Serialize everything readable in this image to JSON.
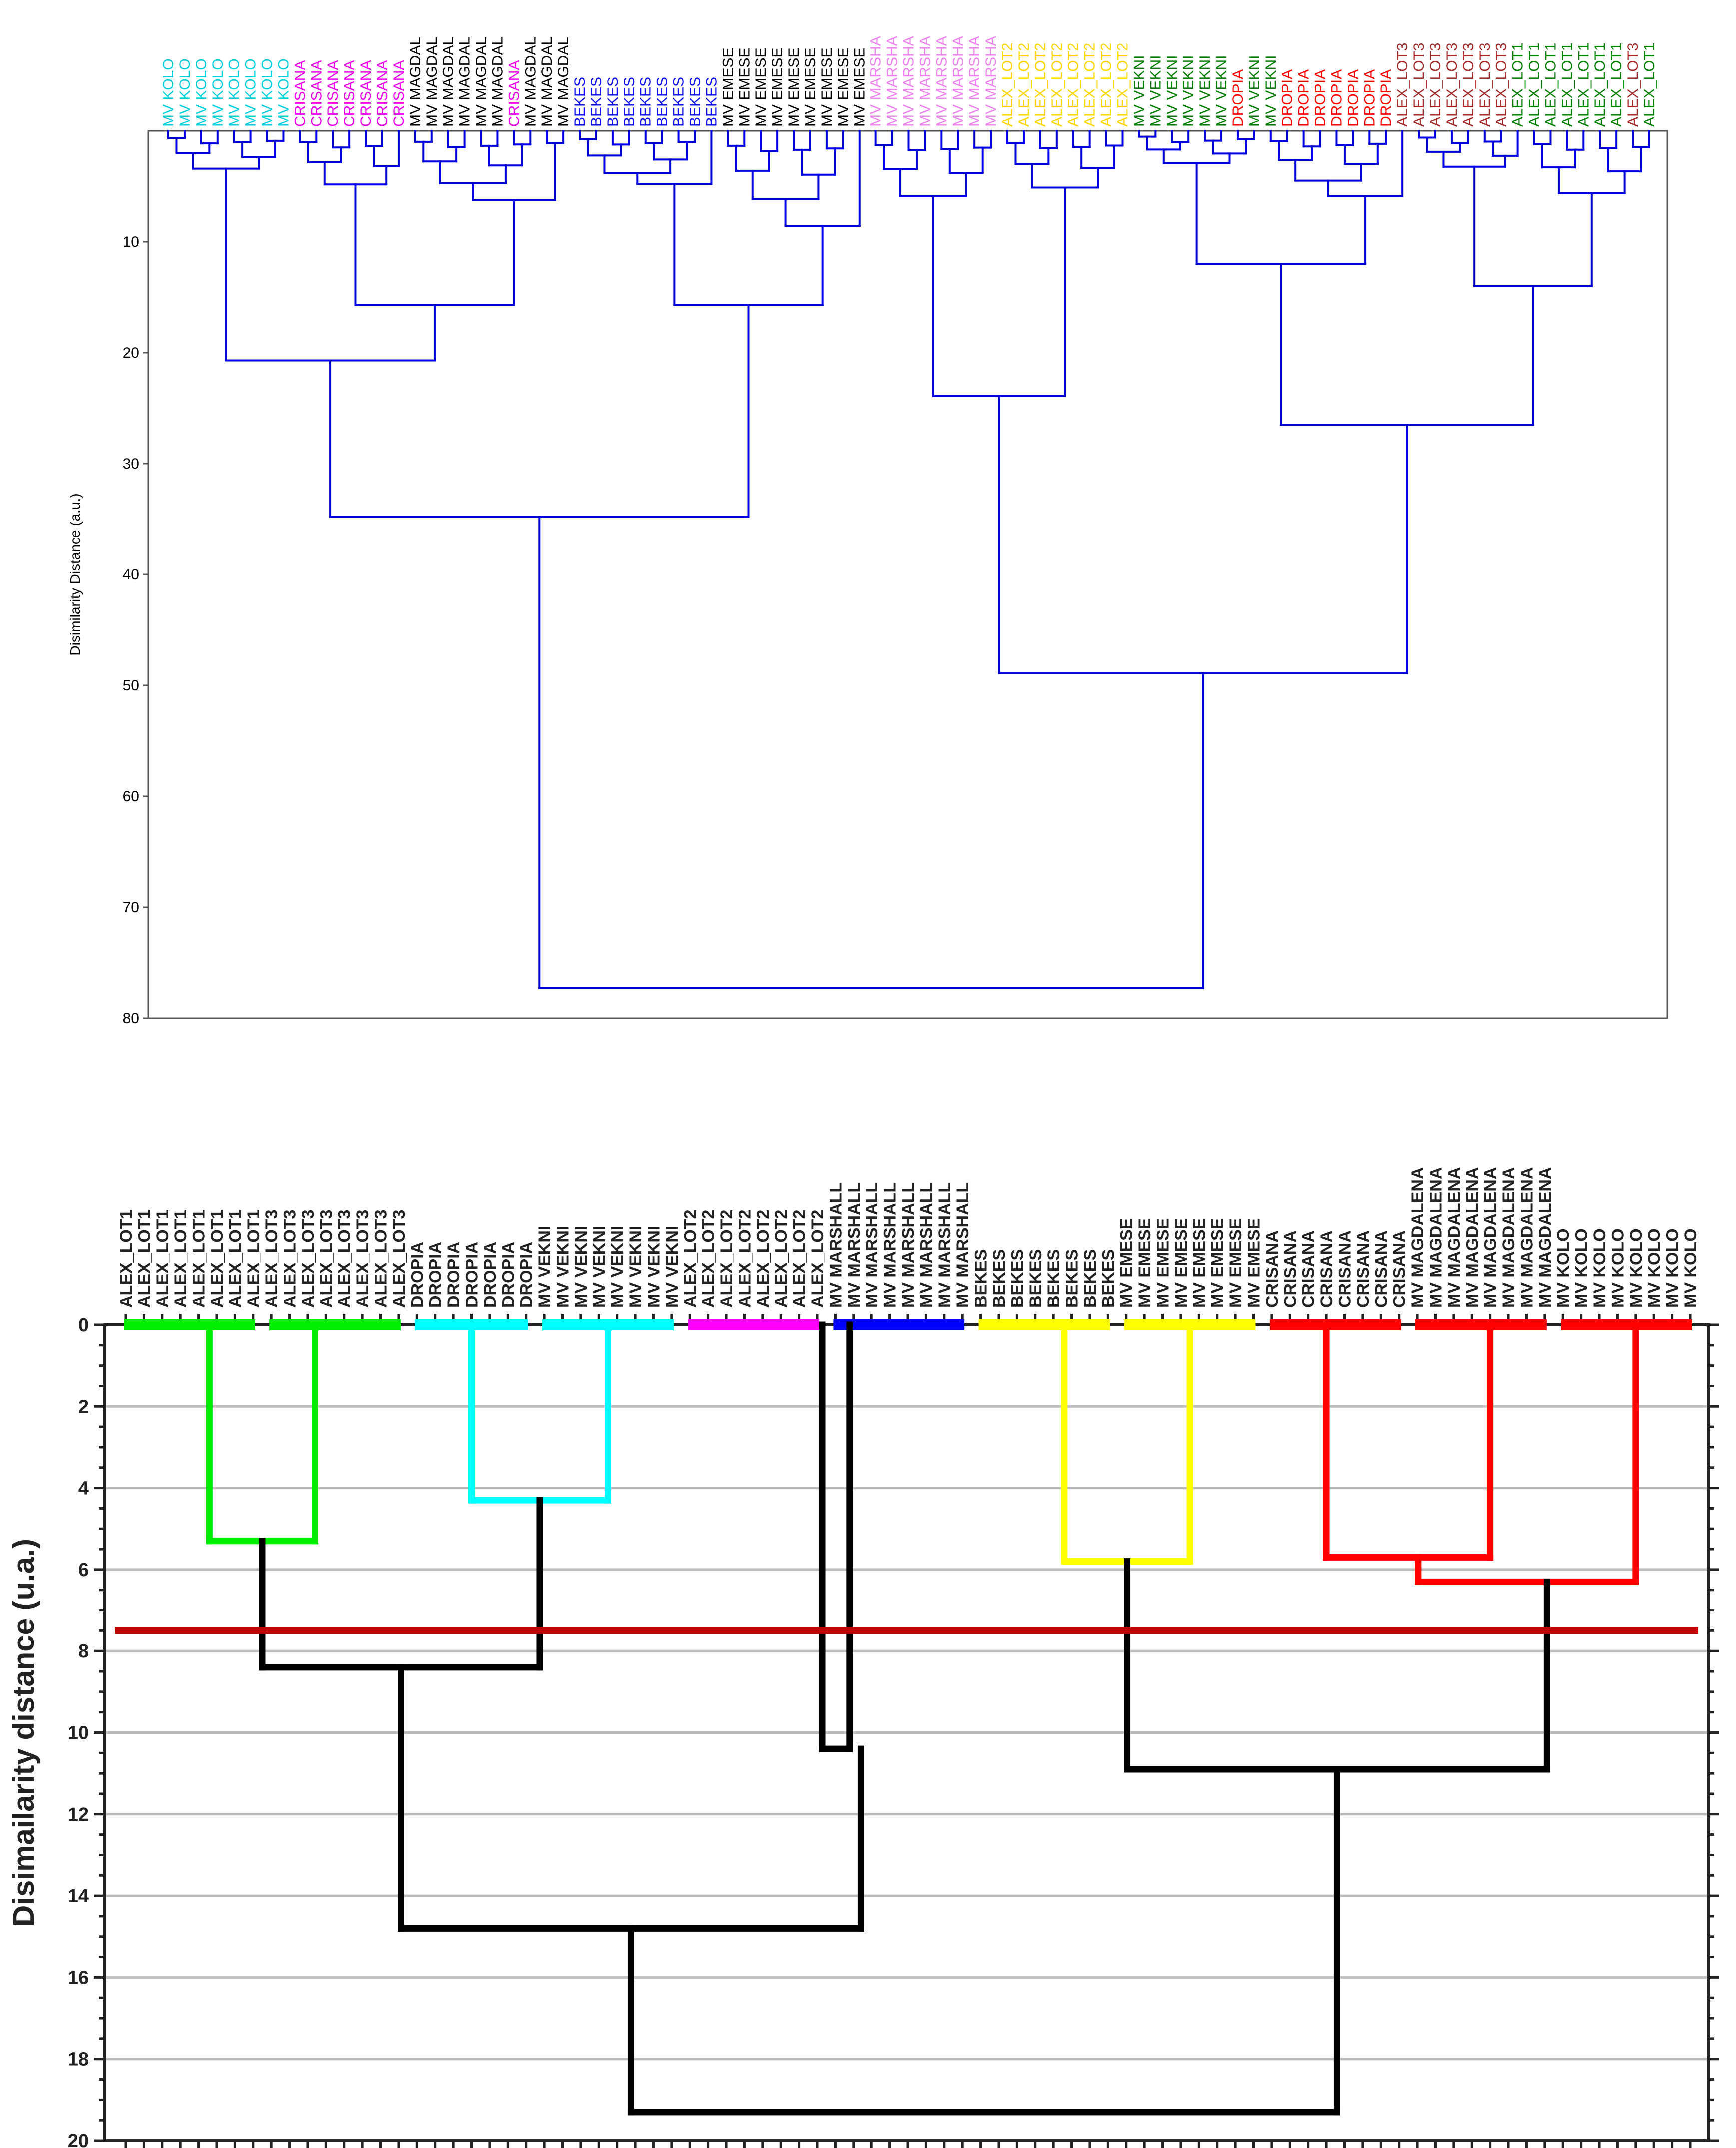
{
  "chart_data": [
    {
      "type": "dendrogram",
      "ylabel": "Disimilarity Distance (a.u.)",
      "ylim": [
        0,
        80
      ],
      "yticks": [
        10,
        20,
        30,
        40,
        50,
        60,
        70,
        80
      ],
      "y_axis_direction": "down",
      "leaves": [
        {
          "label": "MV KOLO",
          "group": "kolo"
        },
        {
          "label": "MV KOLO",
          "group": "kolo"
        },
        {
          "label": "MV KOLO",
          "group": "kolo"
        },
        {
          "label": "MV KOLO",
          "group": "kolo"
        },
        {
          "label": "MV KOLO",
          "group": "kolo"
        },
        {
          "label": "MV KOLO",
          "group": "kolo"
        },
        {
          "label": "MV KOLO",
          "group": "kolo"
        },
        {
          "label": "MV KOLO",
          "group": "kolo"
        },
        {
          "label": "CRISANA",
          "group": "crisana"
        },
        {
          "label": "CRISANA",
          "group": "crisana"
        },
        {
          "label": "CRISANA",
          "group": "crisana"
        },
        {
          "label": "CRISANA",
          "group": "crisana"
        },
        {
          "label": "CRISANA",
          "group": "crisana"
        },
        {
          "label": "CRISANA",
          "group": "crisana"
        },
        {
          "label": "CRISANA",
          "group": "crisana"
        },
        {
          "label": "MV MAGDAL",
          "group": "magdal"
        },
        {
          "label": "MV MAGDAL",
          "group": "magdal"
        },
        {
          "label": "MV MAGDAL",
          "group": "magdal"
        },
        {
          "label": "MV MAGDAL",
          "group": "magdal"
        },
        {
          "label": "MV MAGDAL",
          "group": "magdal"
        },
        {
          "label": "MV MAGDAL",
          "group": "magdal"
        },
        {
          "label": "CRISANA",
          "group": "crisana"
        },
        {
          "label": "MV MAGDAL",
          "group": "magdal"
        },
        {
          "label": "MV MAGDAL",
          "group": "magdal"
        },
        {
          "label": "MV MAGDAL",
          "group": "magdal"
        },
        {
          "label": "BEKES",
          "group": "bekes"
        },
        {
          "label": "BEKES",
          "group": "bekes"
        },
        {
          "label": "BEKES",
          "group": "bekes"
        },
        {
          "label": "BEKES",
          "group": "bekes"
        },
        {
          "label": "BEKES",
          "group": "bekes"
        },
        {
          "label": "BEKES",
          "group": "bekes"
        },
        {
          "label": "BEKES",
          "group": "bekes"
        },
        {
          "label": "BEKES",
          "group": "bekes"
        },
        {
          "label": "BEKES",
          "group": "bekes"
        },
        {
          "label": "MV EMESE",
          "group": "emese"
        },
        {
          "label": "MV EMESE",
          "group": "emese"
        },
        {
          "label": "MV EMESE",
          "group": "emese"
        },
        {
          "label": "MV EMESE",
          "group": "emese"
        },
        {
          "label": "MV EMESE",
          "group": "emese"
        },
        {
          "label": "MV EMESE",
          "group": "emese"
        },
        {
          "label": "MV EMESE",
          "group": "emese"
        },
        {
          "label": "MV EMESE",
          "group": "emese"
        },
        {
          "label": "MV EMESE",
          "group": "emese"
        },
        {
          "label": "MV MARSHA",
          "group": "marsha"
        },
        {
          "label": "MV MARSHA",
          "group": "marsha"
        },
        {
          "label": "MV MARSHA",
          "group": "marsha"
        },
        {
          "label": "MV MARSHA",
          "group": "marsha"
        },
        {
          "label": "MV MARSHA",
          "group": "marsha"
        },
        {
          "label": "MV MARSHA",
          "group": "marsha"
        },
        {
          "label": "MV MARSHA",
          "group": "marsha"
        },
        {
          "label": "MV MARSHA",
          "group": "marsha"
        },
        {
          "label": "ALEX_LOT2",
          "group": "lot2"
        },
        {
          "label": "ALEX_LOT2",
          "group": "lot2"
        },
        {
          "label": "ALEX_LOT2",
          "group": "lot2"
        },
        {
          "label": "ALEX_LOT2",
          "group": "lot2"
        },
        {
          "label": "ALEX_LOT2",
          "group": "lot2"
        },
        {
          "label": "ALEX_LOT2",
          "group": "lot2"
        },
        {
          "label": "ALEX_LOT2",
          "group": "lot2"
        },
        {
          "label": "ALEX_LOT2",
          "group": "lot2"
        },
        {
          "label": "MV VEKNI",
          "group": "vekni"
        },
        {
          "label": "MV VEKNI",
          "group": "vekni"
        },
        {
          "label": "MV VEKNI",
          "group": "vekni"
        },
        {
          "label": "MV VEKNI",
          "group": "vekni"
        },
        {
          "label": "MV VEKNI",
          "group": "vekni"
        },
        {
          "label": "MV VEKNI",
          "group": "vekni"
        },
        {
          "label": "DROPIA",
          "group": "dropia"
        },
        {
          "label": "MV VEKNI",
          "group": "vekni"
        },
        {
          "label": "MV VEKNI",
          "group": "vekni"
        },
        {
          "label": "DROPIA",
          "group": "dropia"
        },
        {
          "label": "DROPIA",
          "group": "dropia"
        },
        {
          "label": "DROPIA",
          "group": "dropia"
        },
        {
          "label": "DROPIA",
          "group": "dropia"
        },
        {
          "label": "DROPIA",
          "group": "dropia"
        },
        {
          "label": "DROPIA",
          "group": "dropia"
        },
        {
          "label": "DROPIA",
          "group": "dropia"
        },
        {
          "label": "ALEX_LOT3",
          "group": "lot3"
        },
        {
          "label": "ALEX_LOT3",
          "group": "lot3"
        },
        {
          "label": "ALEX_LOT3",
          "group": "lot3"
        },
        {
          "label": "ALEX_LOT3",
          "group": "lot3"
        },
        {
          "label": "ALEX_LOT3",
          "group": "lot3"
        },
        {
          "label": "ALEX_LOT3",
          "group": "lot3"
        },
        {
          "label": "ALEX_LOT3",
          "group": "lot3"
        },
        {
          "label": "ALEX_LOT1",
          "group": "lot1"
        },
        {
          "label": "ALEX_LOT1",
          "group": "lot1"
        },
        {
          "label": "ALEX_LOT1",
          "group": "lot1"
        },
        {
          "label": "ALEX_LOT1",
          "group": "lot1"
        },
        {
          "label": "ALEX_LOT1",
          "group": "lot1"
        },
        {
          "label": "ALEX_LOT1",
          "group": "lot1"
        },
        {
          "label": "ALEX_LOT1",
          "group": "lot1"
        },
        {
          "label": "ALEX_LOT3",
          "group": "lot3"
        },
        {
          "label": "ALEX_LOT1",
          "group": "lot1"
        }
      ],
      "group_colors": {
        "kolo": "#00d0e0",
        "crisana": "#ee00ee",
        "magdal": "#000000",
        "bekes": "#1010ee",
        "emese": "#000000",
        "marsha": "#ee82ee",
        "lot2": "#ffd700",
        "vekni": "#008000",
        "dropia": "#ff0000",
        "lot3": "#a52a2a",
        "lot1": "#008000"
      },
      "link_color": "#0000dd",
      "merges": [
        {
          "left": [
            0,
            7
          ],
          "right": null,
          "height": 4.5
        },
        {
          "left": [
            8,
            14
          ],
          "right": [
            15,
            24
          ],
          "height": 20.7
        },
        {
          "left": [
            8,
            14
          ],
          "right": null,
          "height": 7.0
        },
        {
          "left": [
            15,
            24
          ],
          "right": null,
          "height": 6.8
        },
        {
          "left": [
            8,
            24
          ],
          "right": null,
          "height": 15.7
        },
        {
          "left": [
            0,
            24
          ],
          "right": [
            25,
            42
          ],
          "height": 34.8
        },
        {
          "left": [
            25,
            33
          ],
          "right": [
            34,
            42
          ],
          "height": 15.7
        },
        {
          "left": [
            25,
            33
          ],
          "right": null,
          "height": 5.2
        },
        {
          "left": [
            34,
            42
          ],
          "right": null,
          "height": 9.3
        },
        {
          "left": [
            43,
            50
          ],
          "right": [
            51,
            58
          ],
          "height": 23.9
        },
        {
          "left": [
            43,
            50
          ],
          "right": null,
          "height": 8.8
        },
        {
          "left": [
            51,
            58
          ],
          "right": null,
          "height": 7.5
        },
        {
          "left": [
            59,
            75
          ],
          "right": [
            76,
            90
          ],
          "height": 26.5
        },
        {
          "left": [
            59,
            75
          ],
          "right": null,
          "height": 12.0
        },
        {
          "left": [
            76,
            90
          ],
          "right": null,
          "height": 14.0
        },
        {
          "left": [
            43,
            58
          ],
          "right": [
            59,
            90
          ],
          "height": 48.9
        },
        {
          "left": [
            0,
            42
          ],
          "right": [
            43,
            90
          ],
          "height": 77.3
        }
      ]
    },
    {
      "type": "dendrogram",
      "ylabel": "Disimailarity distance (u.a.)",
      "ylim": [
        0,
        20
      ],
      "yticks": [
        0,
        2,
        4,
        6,
        8,
        10,
        12,
        14,
        16,
        18,
        20
      ],
      "y_axis_direction": "down",
      "grid": true,
      "cut_line": {
        "value": 7.5,
        "color": "#c00000"
      },
      "leaves": [
        "ALEX_LOT1",
        "ALEX_LOT1",
        "ALEX_LOT1",
        "ALEX_LOT1",
        "ALEX_LOT1",
        "ALEX_LOT1",
        "ALEX_LOT1",
        "ALEX_LOT1",
        "ALEX_LOT3",
        "ALEX_LOT3",
        "ALEX_LOT3",
        "ALEX_LOT3",
        "ALEX_LOT3",
        "ALEX_LOT3",
        "ALEX_LOT3",
        "ALEX_LOT3",
        "DROPIA",
        "DROPIA",
        "DROPIA",
        "DROPIA",
        "DROPIA",
        "DROPIA",
        "DROPIA",
        "MV VEKNI",
        "MV VEKNI",
        "MV VEKNI",
        "MV VEKNI",
        "MV VEKNI",
        "MV VEKNI",
        "MV VEKNI",
        "MV VEKNI",
        "ALEX_LOT2",
        "ALEX_LOT2",
        "ALEX_LOT2",
        "ALEX_LOT2",
        "ALEX_LOT2",
        "ALEX_LOT2",
        "ALEX_LOT2",
        "ALEX_LOT2",
        "MV MARSHALL",
        "MV MARSHALL",
        "MV MARSHALL",
        "MV MARSHALL",
        "MV MARSHALL",
        "MV MARSHALL",
        "MV MARSHALL",
        "MV MARSHALL",
        "BEKES",
        "BEKES",
        "BEKES",
        "BEKES",
        "BEKES",
        "BEKES",
        "BEKES",
        "BEKES",
        "MV EMESE",
        "MV EMESE",
        "MV EMESE",
        "MV EMESE",
        "MV EMESE",
        "MV EMESE",
        "MV EMESE",
        "MV EMESE",
        "CRISANA",
        "CRISANA",
        "CRISANA",
        "CRISANA",
        "CRISANA",
        "CRISANA",
        "CRISANA",
        "CRISANA",
        "MV MAGDALENA",
        "MV MAGDALENA",
        "MV MAGDALENA",
        "MV MAGDALENA",
        "MV MAGDALENA",
        "MV MAGDALENA",
        "MV MAGDALENA",
        "MV MAGDALENA",
        "MV KOLO",
        "MV KOLO",
        "MV KOLO",
        "MV KOLO",
        "MV KOLO",
        "MV KOLO",
        "MV KOLO",
        "MV KOLO"
      ],
      "clusters": [
        {
          "leaves": [
            0,
            7
          ],
          "color": "#00ee00"
        },
        {
          "leaves": [
            8,
            15
          ],
          "color": "#00ee00"
        },
        {
          "leaves": [
            16,
            22
          ],
          "color": "#00ffff"
        },
        {
          "leaves": [
            23,
            30
          ],
          "color": "#00ffff"
        },
        {
          "leaves": [
            31,
            38
          ],
          "color": "#ff00ff"
        },
        {
          "leaves": [
            39,
            46
          ],
          "color": "#0000ff"
        },
        {
          "leaves": [
            47,
            54
          ],
          "color": "#ffff00"
        },
        {
          "leaves": [
            55,
            62
          ],
          "color": "#ffff00"
        },
        {
          "leaves": [
            63,
            70
          ],
          "color": "#ff0000"
        },
        {
          "leaves": [
            71,
            78
          ],
          "color": "#ff0000"
        },
        {
          "leaves": [
            79,
            86
          ],
          "color": "#ff0000"
        }
      ],
      "merges": [
        {
          "a": "ALEX_LOT1",
          "b": "ALEX_LOT3",
          "height": 5.3,
          "color": "#00ee00"
        },
        {
          "a": "DROPIA",
          "b": "MV VEKNI",
          "height": 4.3,
          "color": "#00ffff"
        },
        {
          "a": "LOT1+LOT3",
          "b": "DROPIA+VEKNI",
          "height": 8.4,
          "color": "#000000"
        },
        {
          "a": "ALEX_LOT2",
          "b": "MV MARSHALL",
          "height": 10.4,
          "color": "#000000"
        },
        {
          "a": "group A",
          "b": "LOT2+MARSHALL",
          "height": 14.8,
          "color": "#000000"
        },
        {
          "a": "BEKES",
          "b": "MV EMESE",
          "height": 5.8,
          "color": "#ffff00"
        },
        {
          "a": "CRISANA",
          "b": "MV MAGDALENA",
          "height": 5.7,
          "color": "#ff0000"
        },
        {
          "a": "CRISANA+MAGDALENA",
          "b": "MV KOLO",
          "height": 6.3,
          "color": "#ff0000"
        },
        {
          "a": "BEKES+EMESE",
          "b": "CRISANA+MAGDALENA+KOLO",
          "height": 10.9,
          "color": "#000000"
        },
        {
          "a": "left",
          "b": "right",
          "height": 19.3,
          "color": "#000000"
        }
      ]
    }
  ]
}
